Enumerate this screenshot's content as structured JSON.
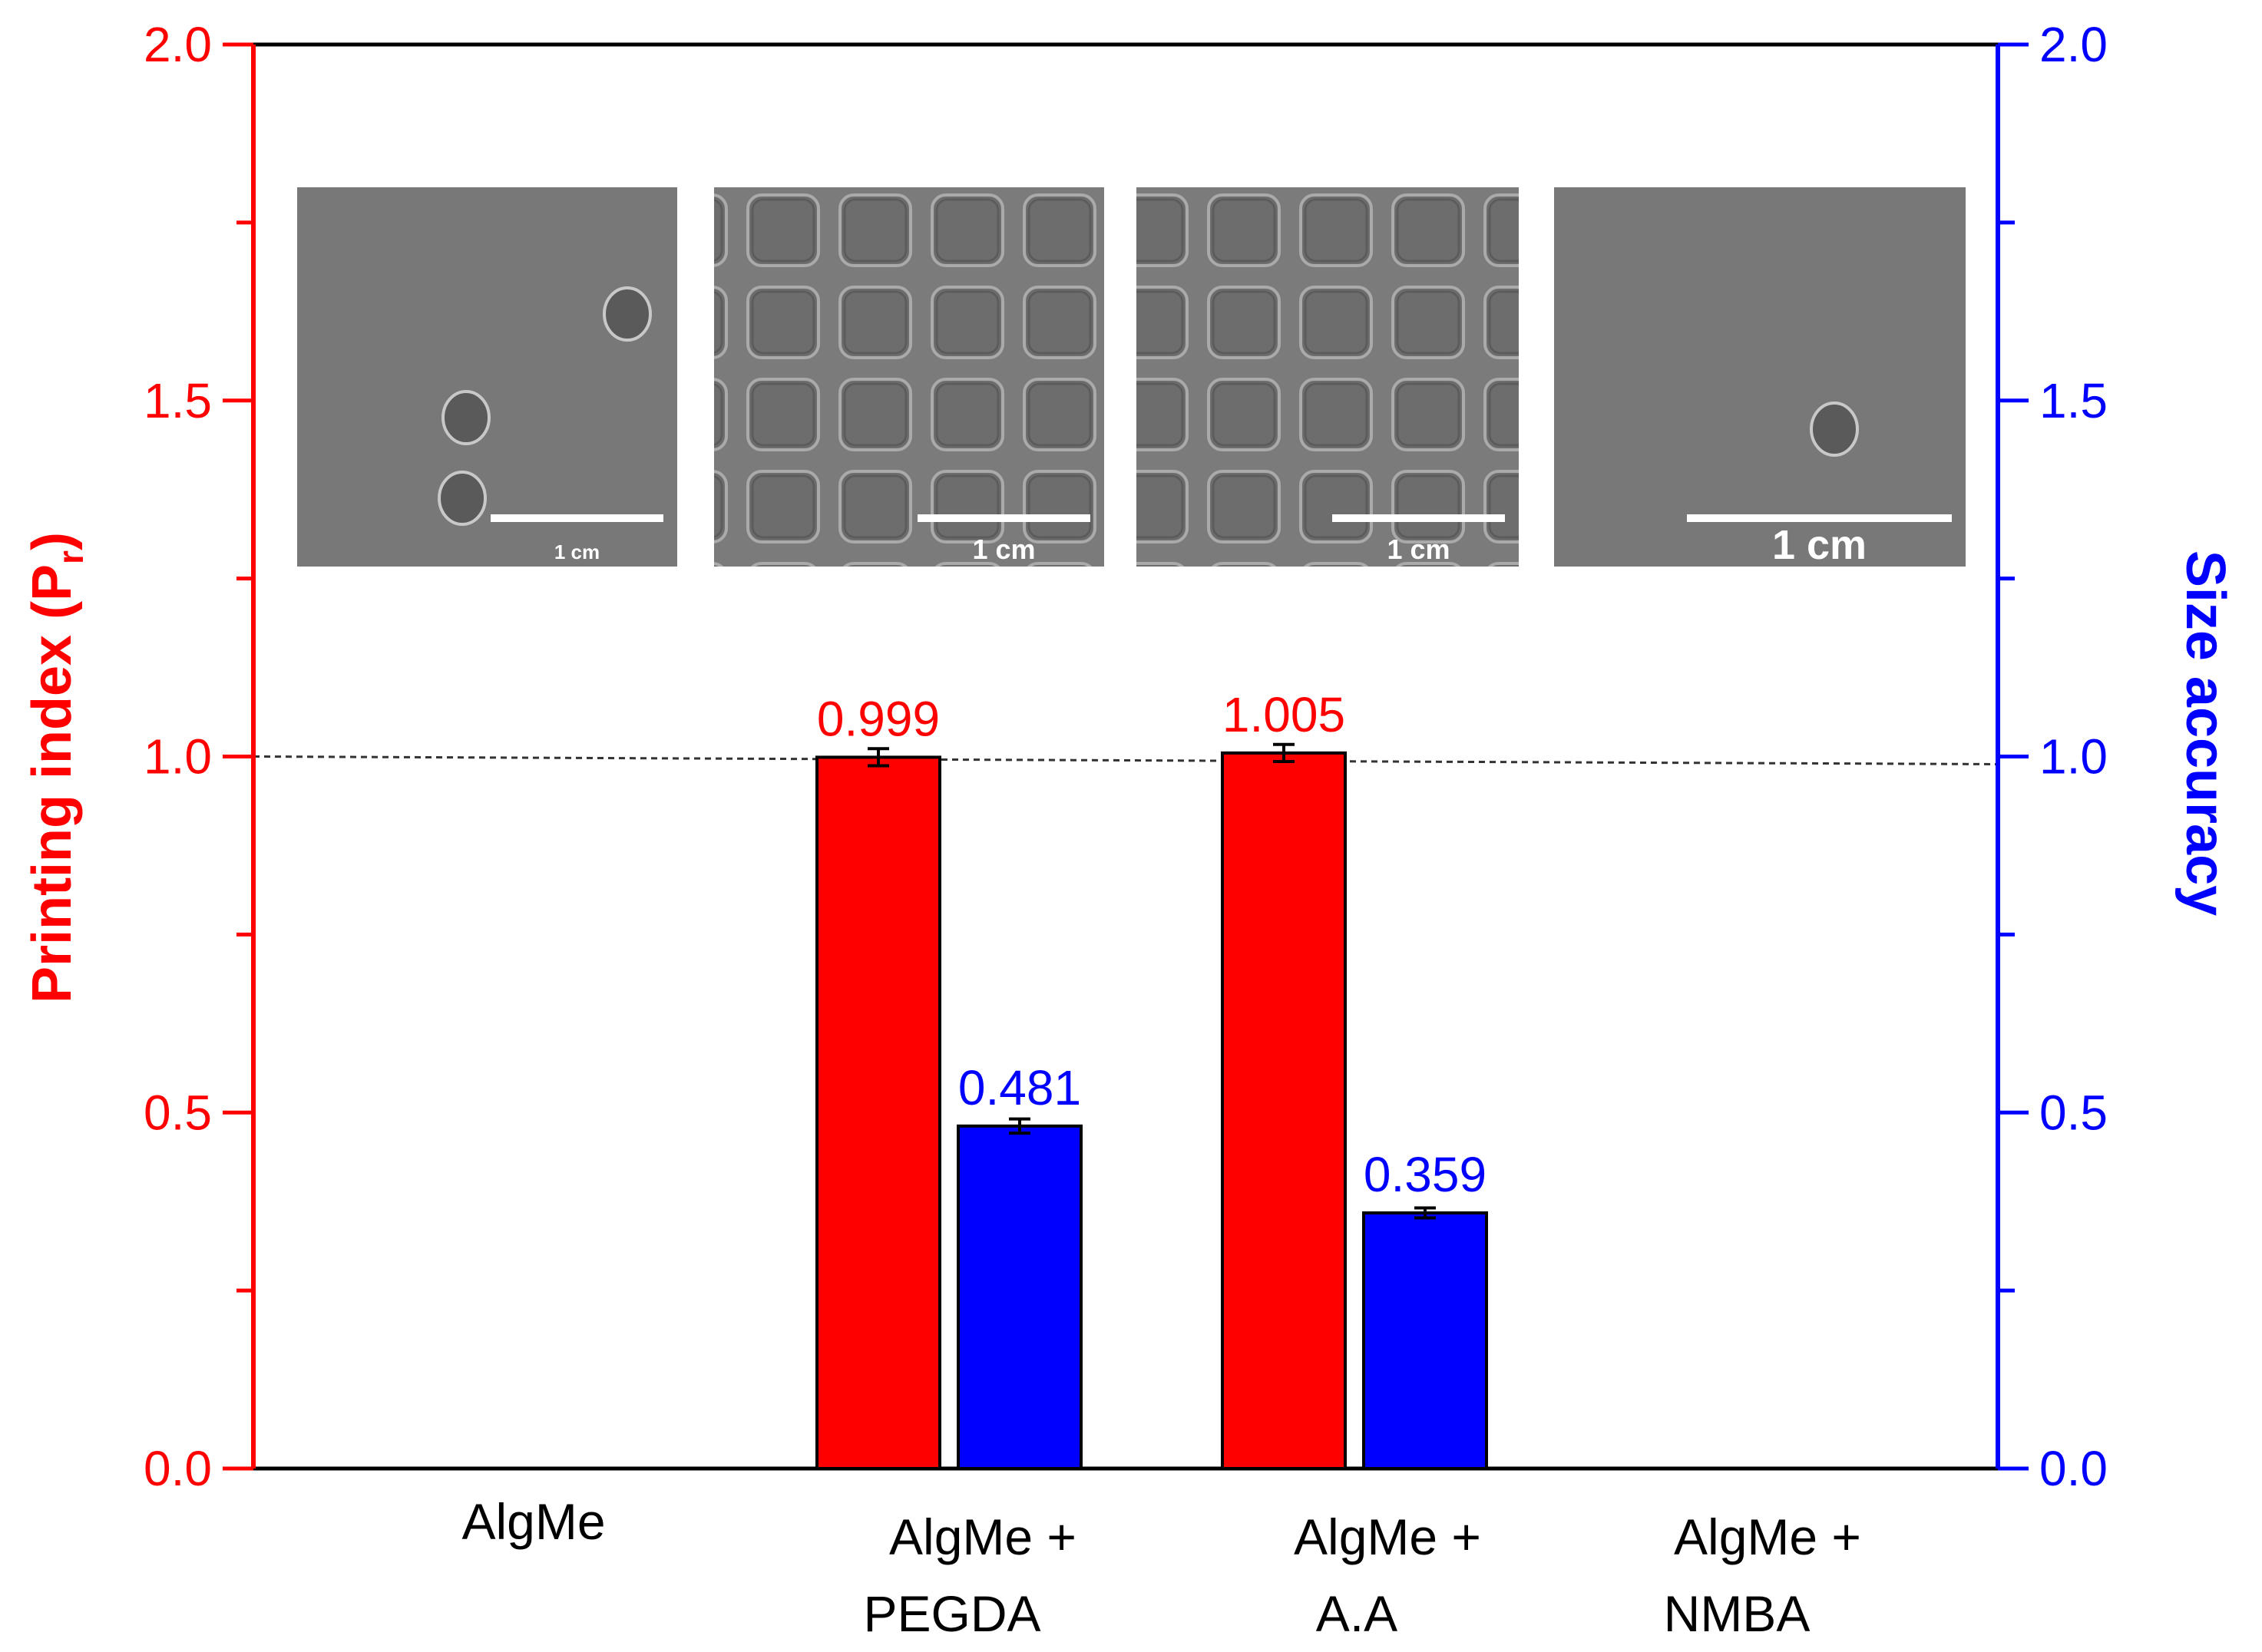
{
  "chart_data": {
    "type": "bar",
    "categories": [
      "AlgMe",
      "AlgMe +\nPEGDA",
      "AlgMe +\nA.A",
      "AlgMe +\nNMBA"
    ],
    "series": [
      {
        "name": "Printing index",
        "axis": "left",
        "color": "#ff0000",
        "values": [
          null,
          0.999,
          1.005,
          null
        ],
        "errors": [
          null,
          0.012,
          0.012,
          null
        ],
        "labels": [
          "",
          "0.999",
          "1.005",
          ""
        ]
      },
      {
        "name": "Size accuracy",
        "axis": "right",
        "color": "#0000ff",
        "values": [
          null,
          0.481,
          0.359,
          null
        ],
        "errors": [
          null,
          0.01,
          0.007,
          null
        ],
        "labels": [
          "",
          "0.481",
          "0.359",
          ""
        ]
      }
    ],
    "ylabel_left": "Printing index (P",
    "ylabel_left_sub": "r",
    "ylabel_left_close": ")",
    "ylabel_right": "Size accuracy",
    "ylim_left": [
      0,
      2
    ],
    "ylim_right": [
      0,
      2
    ],
    "yticks_left": [
      "0.0",
      "0.5",
      "1.0",
      "1.5",
      "2.0"
    ],
    "yticks_right": [
      "0.0",
      "0.5",
      "1.0",
      "1.5",
      "2.0"
    ],
    "reference_line": 1.0,
    "grid": false,
    "left_axis_color": "#ff0000",
    "right_axis_color": "#0000ff"
  },
  "insets": [
    {
      "scale_label": "1 cm",
      "pattern": "blank",
      "blobs": 3
    },
    {
      "scale_label": "1 cm",
      "pattern": "grid"
    },
    {
      "scale_label": "1 cm",
      "pattern": "grid"
    },
    {
      "scale_label": "1 cm",
      "pattern": "blank",
      "blobs": 1
    }
  ]
}
